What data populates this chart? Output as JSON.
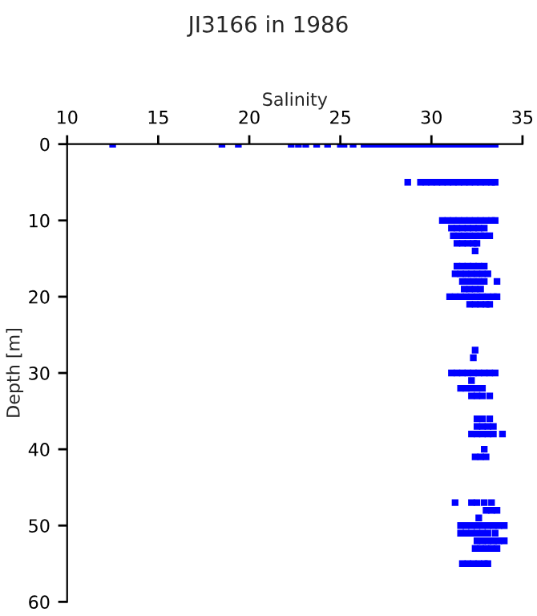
{
  "chart_data": {
    "type": "scatter",
    "title": "JI3166 in 1986",
    "xlabel": "Salinity",
    "ylabel": "Depth [m]",
    "xlim": [
      10,
      35
    ],
    "xticks": [
      10,
      15,
      20,
      25,
      30,
      35
    ],
    "ylim": [
      60,
      0
    ],
    "yticks": [
      0,
      10,
      20,
      30,
      40,
      50,
      60
    ],
    "grid": false,
    "legend": false,
    "marker": "square",
    "series": [
      {
        "color": "#0000ff",
        "x": [
          12.5,
          18.5,
          19.4,
          22.3,
          22.7,
          23.1,
          23.7,
          24.3,
          25.0,
          25.2,
          25.7,
          26.3,
          26.6,
          26.9,
          27.2,
          27.5,
          27.8,
          28.1,
          28.4,
          28.7,
          29.0,
          29.3,
          29.6,
          29.9,
          30.2,
          30.5,
          30.8,
          31.1,
          31.4,
          31.7,
          32.0,
          32.3,
          32.6,
          32.9,
          33.2,
          33.5
        ],
        "values": [
          0,
          0,
          0,
          0,
          0,
          0,
          0,
          0,
          0,
          0,
          0,
          0,
          0,
          0,
          0,
          0,
          0,
          0,
          0,
          0,
          0,
          0,
          0,
          0,
          0,
          0,
          0,
          0,
          0,
          0,
          0,
          0,
          0,
          0,
          0,
          0
        ]
      },
      {
        "color": "#0000ff",
        "x": [
          28.7,
          29.4,
          29.7,
          30.0,
          30.3,
          30.6,
          30.9,
          31.2,
          31.5,
          31.8,
          32.1,
          32.4,
          32.7,
          33.0,
          33.3,
          33.5
        ],
        "values": [
          5,
          5,
          5,
          5,
          5,
          5,
          5,
          5,
          5,
          5,
          5,
          5,
          5,
          5,
          5,
          5
        ]
      },
      {
        "color": "#0000ff",
        "x": [
          30.6,
          30.9,
          31.2,
          31.5,
          31.8,
          32.1,
          32.4,
          32.7,
          33.0,
          33.3,
          33.5
        ],
        "values": [
          10,
          10,
          10,
          10,
          10,
          10,
          10,
          10,
          10,
          10,
          10
        ]
      },
      {
        "color": "#0000ff",
        "x": [
          31.1,
          31.4,
          31.7,
          32.0,
          32.3,
          32.6,
          32.9
        ],
        "values": [
          11,
          11,
          11,
          11,
          11,
          11,
          11
        ]
      },
      {
        "color": "#0000ff",
        "x": [
          31.2,
          31.5,
          31.8,
          32.1,
          32.4,
          32.7,
          32.9,
          33.2
        ],
        "values": [
          12,
          12,
          12,
          12,
          12,
          12,
          12,
          12
        ]
      },
      {
        "color": "#0000ff",
        "x": [
          31.4,
          31.7,
          32.0,
          32.3,
          32.5,
          32.4
        ],
        "values": [
          13,
          13,
          13,
          13,
          13,
          14
        ]
      },
      {
        "color": "#0000ff",
        "x": [
          31.4,
          31.7,
          32.0,
          32.3,
          32.6,
          32.9
        ],
        "values": [
          16,
          16,
          16,
          16,
          16,
          16
        ]
      },
      {
        "color": "#0000ff",
        "x": [
          31.3,
          31.6,
          31.9,
          32.2,
          32.5,
          32.8,
          33.1
        ],
        "values": [
          17,
          17,
          17,
          17,
          17,
          17,
          17
        ]
      },
      {
        "color": "#0000ff",
        "x": [
          31.7,
          32.0,
          32.3,
          32.6,
          32.9,
          33.6
        ],
        "values": [
          18,
          18,
          18,
          18,
          18,
          18
        ]
      },
      {
        "color": "#0000ff",
        "x": [
          31.8,
          32.1,
          32.4,
          32.7
        ],
        "values": [
          19,
          19,
          19,
          19
        ]
      },
      {
        "color": "#0000ff",
        "x": [
          31.0,
          31.3,
          31.6,
          31.9,
          32.2,
          32.5,
          32.8,
          33.1,
          33.4,
          33.6
        ],
        "values": [
          20,
          20,
          20,
          20,
          20,
          20,
          20,
          20,
          20,
          20
        ]
      },
      {
        "color": "#0000ff",
        "x": [
          32.1,
          32.4,
          32.7,
          33.0,
          33.2,
          32.4,
          32.3
        ],
        "values": [
          21,
          21,
          21,
          21,
          21,
          27,
          28
        ]
      },
      {
        "color": "#0000ff",
        "x": [
          31.1,
          31.4,
          31.7,
          32.0,
          32.3,
          32.6,
          32.9,
          33.2,
          33.5,
          32.2
        ],
        "values": [
          30,
          30,
          30,
          30,
          30,
          30,
          30,
          30,
          30,
          31
        ]
      },
      {
        "color": "#0000ff",
        "x": [
          31.6,
          31.9,
          32.2,
          32.5,
          32.8,
          32.2,
          32.5,
          32.8,
          33.2
        ],
        "values": [
          32,
          32,
          32,
          32,
          32,
          33,
          33,
          33,
          33
        ]
      },
      {
        "color": "#0000ff",
        "x": [
          32.5,
          32.8,
          33.2,
          32.5,
          32.8,
          33.1,
          33.4
        ],
        "values": [
          36,
          36,
          36,
          37,
          37,
          37,
          37
        ]
      },
      {
        "color": "#0000ff",
        "x": [
          32.2,
          32.5,
          32.8,
          33.1,
          33.4,
          33.9,
          32.9,
          32.4,
          32.7,
          33.0
        ],
        "values": [
          38,
          38,
          38,
          38,
          38,
          38,
          40,
          41,
          41,
          41
        ]
      },
      {
        "color": "#0000ff",
        "x": [
          31.3,
          32.2,
          32.5,
          32.9,
          33.3,
          33.0,
          33.3,
          33.6,
          32.6
        ],
        "values": [
          47,
          47,
          47,
          47,
          47,
          48,
          48,
          48,
          49
        ]
      },
      {
        "color": "#0000ff",
        "x": [
          31.6,
          31.9,
          32.2,
          32.5,
          32.8,
          33.1,
          33.4,
          33.7,
          34.0
        ],
        "values": [
          50,
          50,
          50,
          50,
          50,
          50,
          50,
          50,
          50
        ]
      },
      {
        "color": "#0000ff",
        "x": [
          31.6,
          31.9,
          32.2,
          32.5,
          32.8,
          33.1,
          33.5
        ],
        "values": [
          51,
          51,
          51,
          51,
          51,
          51,
          51
        ]
      },
      {
        "color": "#0000ff",
        "x": [
          32.5,
          32.8,
          33.1,
          33.4,
          33.7,
          34.0
        ],
        "values": [
          52,
          52,
          52,
          52,
          52,
          52
        ]
      },
      {
        "color": "#0000ff",
        "x": [
          32.4,
          32.7,
          33.0,
          33.3,
          33.6
        ],
        "values": [
          53,
          53,
          53,
          53,
          53
        ]
      },
      {
        "color": "#0000ff",
        "x": [
          31.7,
          32.0,
          32.3,
          32.6,
          32.9,
          33.1
        ],
        "values": [
          55,
          55,
          55,
          55,
          55,
          55
        ]
      }
    ]
  }
}
